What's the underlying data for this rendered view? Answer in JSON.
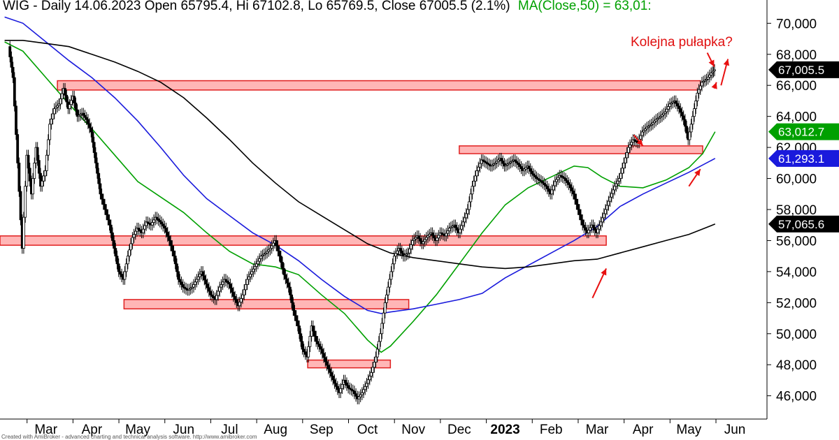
{
  "header": {
    "title_main": "WIG - Daily 14.06.2023 Open 65795.4, Hi 67102.8, Lo 65769.5, Close 67005.5 (2.1%)",
    "title_ma": "MA(Close,50) = 63,01:"
  },
  "annotation": {
    "text": "Kolejna pułapka?"
  },
  "footer": {
    "credit": "Created with AmiBroker - advanced charting and technical analysis software. http://www.amibroker.com"
  },
  "colors": {
    "price": "#000000",
    "ma50": "#00a000",
    "ma100": "#1a1adc",
    "ma200": "#000000",
    "zone_fill": "#ffb6b6",
    "zone_stroke": "#e02020",
    "arrow": "#e81010"
  },
  "chart_data": {
    "type": "candlestick",
    "ylim": [
      44500,
      71500
    ],
    "y_ticks": [
      46000,
      48000,
      50000,
      52000,
      54000,
      56000,
      58000,
      60000,
      62000,
      64000,
      66000,
      68000,
      70000
    ],
    "y_tick_labels": [
      "46,000",
      "48,000",
      "50,000",
      "52,000",
      "54,000",
      "56,000",
      "58,000",
      "60,000",
      "62,000",
      "64,000",
      "66,000",
      "68,000",
      "70,000"
    ],
    "x_months": [
      {
        "label": "Mar",
        "x": -8.5
      },
      {
        "label": "Apr",
        "x": -7.5
      },
      {
        "label": "May",
        "x": -6.5
      },
      {
        "label": "Jun",
        "x": -5.5
      },
      {
        "label": "Jul",
        "x": -4.5
      },
      {
        "label": "Aug",
        "x": -3.5
      },
      {
        "label": "Sep",
        "x": -2.5
      },
      {
        "label": "Oct",
        "x": -1.5
      },
      {
        "label": "Nov",
        "x": -0.5
      },
      {
        "label": "Dec",
        "x": 0.5
      },
      {
        "label": "2023",
        "x": 1.5,
        "bold": true
      },
      {
        "label": "Feb",
        "x": 2.5
      },
      {
        "label": "Mar",
        "x": 3.5
      },
      {
        "label": "Apr",
        "x": 4.5
      },
      {
        "label": "May",
        "x": 5.5
      },
      {
        "label": "Jun",
        "x": 6.5
      }
    ],
    "x_range": [
      -9.5,
      7.2
    ],
    "price_path": [
      [
        -9.3,
        68500
      ],
      [
        -9.2,
        66500
      ],
      [
        -9.1,
        61000
      ],
      [
        -9.0,
        55500
      ],
      [
        -8.9,
        61500
      ],
      [
        -8.8,
        59000
      ],
      [
        -8.7,
        62000
      ],
      [
        -8.6,
        59500
      ],
      [
        -8.5,
        60500
      ],
      [
        -8.4,
        63500
      ],
      [
        -8.3,
        64500
      ],
      [
        -8.2,
        64800
      ],
      [
        -8.1,
        65800
      ],
      [
        -8.0,
        64500
      ],
      [
        -7.9,
        65300
      ],
      [
        -7.8,
        64000
      ],
      [
        -7.7,
        64200
      ],
      [
        -7.6,
        63800
      ],
      [
        -7.5,
        63000
      ],
      [
        -7.4,
        61000
      ],
      [
        -7.3,
        59000
      ],
      [
        -7.2,
        58000
      ],
      [
        -7.1,
        57000
      ],
      [
        -7.0,
        55500
      ],
      [
        -6.9,
        54000
      ],
      [
        -6.8,
        53500
      ],
      [
        -6.7,
        55000
      ],
      [
        -6.6,
        56200
      ],
      [
        -6.5,
        56800
      ],
      [
        -6.4,
        56500
      ],
      [
        -6.3,
        57200
      ],
      [
        -6.2,
        57000
      ],
      [
        -6.1,
        57500
      ],
      [
        -6.0,
        57200
      ],
      [
        -5.9,
        56800
      ],
      [
        -5.8,
        56000
      ],
      [
        -5.7,
        55000
      ],
      [
        -5.6,
        53500
      ],
      [
        -5.5,
        53000
      ],
      [
        -5.4,
        52800
      ],
      [
        -5.3,
        53000
      ],
      [
        -5.2,
        53500
      ],
      [
        -5.1,
        54000
      ],
      [
        -5.0,
        53200
      ],
      [
        -4.9,
        52500
      ],
      [
        -4.8,
        52200
      ],
      [
        -4.7,
        53000
      ],
      [
        -4.6,
        53500
      ],
      [
        -4.5,
        53200
      ],
      [
        -4.4,
        52400
      ],
      [
        -4.3,
        51800
      ],
      [
        -4.2,
        52500
      ],
      [
        -4.1,
        53500
      ],
      [
        -4.0,
        54000
      ],
      [
        -3.9,
        54500
      ],
      [
        -3.8,
        55000
      ],
      [
        -3.7,
        55200
      ],
      [
        -3.6,
        55500
      ],
      [
        -3.5,
        56000
      ],
      [
        -3.4,
        55000
      ],
      [
        -3.3,
        53800
      ],
      [
        -3.2,
        53000
      ],
      [
        -3.1,
        51500
      ],
      [
        -3.0,
        50500
      ],
      [
        -2.9,
        49000
      ],
      [
        -2.8,
        48500
      ],
      [
        -2.7,
        50500
      ],
      [
        -2.6,
        49500
      ],
      [
        -2.5,
        49000
      ],
      [
        -2.4,
        48200
      ],
      [
        -2.3,
        47500
      ],
      [
        -2.2,
        46800
      ],
      [
        -2.1,
        46200
      ],
      [
        -2.0,
        47000
      ],
      [
        -1.9,
        46500
      ],
      [
        -1.8,
        46300
      ],
      [
        -1.7,
        45800
      ],
      [
        -1.6,
        46200
      ],
      [
        -1.5,
        46800
      ],
      [
        -1.4,
        47500
      ],
      [
        -1.3,
        48500
      ],
      [
        -1.2,
        50000
      ],
      [
        -1.1,
        52000
      ],
      [
        -1.0,
        53500
      ],
      [
        -0.9,
        55000
      ],
      [
        -0.8,
        55500
      ],
      [
        -0.7,
        55000
      ],
      [
        -0.6,
        55200
      ],
      [
        -0.5,
        56000
      ],
      [
        -0.4,
        56300
      ],
      [
        -0.3,
        55800
      ],
      [
        -0.2,
        56200
      ],
      [
        -0.1,
        56500
      ],
      [
        0.0,
        56000
      ],
      [
        0.1,
        56500
      ],
      [
        0.2,
        56300
      ],
      [
        0.3,
        56800
      ],
      [
        0.4,
        57000
      ],
      [
        0.5,
        56500
      ],
      [
        0.6,
        57200
      ],
      [
        0.7,
        58000
      ],
      [
        0.8,
        59500
      ],
      [
        0.9,
        60500
      ],
      [
        1.0,
        61200
      ],
      [
        1.1,
        61000
      ],
      [
        1.2,
        60800
      ],
      [
        1.3,
        61000
      ],
      [
        1.4,
        61300
      ],
      [
        1.5,
        60800
      ],
      [
        1.6,
        61000
      ],
      [
        1.7,
        61200
      ],
      [
        1.8,
        60900
      ],
      [
        1.9,
        60500
      ],
      [
        2.0,
        60800
      ],
      [
        2.1,
        60300
      ],
      [
        2.2,
        60000
      ],
      [
        2.3,
        59800
      ],
      [
        2.4,
        59500
      ],
      [
        2.5,
        59000
      ],
      [
        2.6,
        59800
      ],
      [
        2.7,
        60200
      ],
      [
        2.8,
        60000
      ],
      [
        2.9,
        59600
      ],
      [
        3.0,
        59000
      ],
      [
        3.1,
        58000
      ],
      [
        3.2,
        57000
      ],
      [
        3.3,
        56500
      ],
      [
        3.4,
        57000
      ],
      [
        3.5,
        56500
      ],
      [
        3.6,
        57200
      ],
      [
        3.7,
        58000
      ],
      [
        3.8,
        58800
      ],
      [
        3.9,
        59500
      ],
      [
        4.0,
        60000
      ],
      [
        4.1,
        61000
      ],
      [
        4.2,
        62000
      ],
      [
        4.3,
        62500
      ],
      [
        4.4,
        62300
      ],
      [
        4.5,
        63000
      ],
      [
        4.6,
        63300
      ],
      [
        4.7,
        63500
      ],
      [
        4.8,
        63800
      ],
      [
        4.9,
        64000
      ],
      [
        5.0,
        64300
      ],
      [
        5.1,
        64800
      ],
      [
        5.2,
        65000
      ],
      [
        5.3,
        64500
      ],
      [
        5.4,
        63800
      ],
      [
        5.5,
        62500
      ],
      [
        5.6,
        64000
      ],
      [
        5.7,
        65500
      ],
      [
        5.8,
        66200
      ],
      [
        5.9,
        66400
      ],
      [
        6.0,
        66800
      ],
      [
        6.07,
        67005.5
      ]
    ],
    "series": [
      {
        "name": "MA(Close,50)",
        "label": "63,012.7",
        "path": [
          [
            -9.4,
            68800
          ],
          [
            -9.0,
            68200
          ],
          [
            -8.5,
            66500
          ],
          [
            -8.0,
            64800
          ],
          [
            -7.5,
            63200
          ],
          [
            -7.0,
            61500
          ],
          [
            -6.5,
            59800
          ],
          [
            -6.0,
            58800
          ],
          [
            -5.5,
            57800
          ],
          [
            -5.0,
            56500
          ],
          [
            -4.5,
            55300
          ],
          [
            -4.0,
            54500
          ],
          [
            -3.5,
            54300
          ],
          [
            -3.0,
            53800
          ],
          [
            -2.5,
            52500
          ],
          [
            -2.0,
            51300
          ],
          [
            -1.5,
            49600
          ],
          [
            -1.2,
            48800
          ],
          [
            -1.0,
            49200
          ],
          [
            -0.5,
            50800
          ],
          [
            0.0,
            52500
          ],
          [
            0.5,
            54500
          ],
          [
            1.0,
            56500
          ],
          [
            1.5,
            58300
          ],
          [
            2.0,
            59400
          ],
          [
            2.5,
            60100
          ],
          [
            3.0,
            60800
          ],
          [
            3.3,
            60700
          ],
          [
            3.6,
            60100
          ],
          [
            4.0,
            59500
          ],
          [
            4.5,
            59400
          ],
          [
            5.0,
            59900
          ],
          [
            5.5,
            60700
          ],
          [
            5.8,
            61600
          ],
          [
            6.07,
            63012.7
          ]
        ]
      },
      {
        "name": "MA(Close,100)",
        "label": "61,293.1",
        "path": [
          [
            -9.4,
            70400
          ],
          [
            -9.0,
            70000
          ],
          [
            -8.5,
            68800
          ],
          [
            -8.0,
            67600
          ],
          [
            -7.5,
            66500
          ],
          [
            -7.0,
            65200
          ],
          [
            -6.5,
            63700
          ],
          [
            -6.0,
            62000
          ],
          [
            -5.5,
            60200
          ],
          [
            -5.0,
            58700
          ],
          [
            -4.5,
            57600
          ],
          [
            -4.0,
            56500
          ],
          [
            -3.5,
            55700
          ],
          [
            -3.0,
            54700
          ],
          [
            -2.5,
            53500
          ],
          [
            -2.0,
            52400
          ],
          [
            -1.5,
            51500
          ],
          [
            -1.2,
            51300
          ],
          [
            -1.0,
            51400
          ],
          [
            -0.5,
            51600
          ],
          [
            0.0,
            51900
          ],
          [
            0.5,
            52200
          ],
          [
            1.0,
            52600
          ],
          [
            1.5,
            53600
          ],
          [
            2.0,
            54400
          ],
          [
            2.5,
            55200
          ],
          [
            3.0,
            56000
          ],
          [
            3.5,
            56900
          ],
          [
            4.0,
            58200
          ],
          [
            4.5,
            59000
          ],
          [
            5.0,
            59700
          ],
          [
            5.5,
            60400
          ],
          [
            6.07,
            61293.1
          ]
        ]
      },
      {
        "name": "MA(Close,200)",
        "label": "57,065.6",
        "path": [
          [
            -9.4,
            68900
          ],
          [
            -9.0,
            68900
          ],
          [
            -8.5,
            68700
          ],
          [
            -8.0,
            68500
          ],
          [
            -7.5,
            68000
          ],
          [
            -7.0,
            67500
          ],
          [
            -6.5,
            66900
          ],
          [
            -6.0,
            66200
          ],
          [
            -5.5,
            65200
          ],
          [
            -5.0,
            63900
          ],
          [
            -4.5,
            62500
          ],
          [
            -4.0,
            61000
          ],
          [
            -3.5,
            59700
          ],
          [
            -3.0,
            58500
          ],
          [
            -2.5,
            57600
          ],
          [
            -2.0,
            56700
          ],
          [
            -1.5,
            55800
          ],
          [
            -1.0,
            55200
          ],
          [
            -0.5,
            54900
          ],
          [
            0.0,
            54700
          ],
          [
            0.5,
            54500
          ],
          [
            1.0,
            54300
          ],
          [
            1.5,
            54200
          ],
          [
            2.0,
            54300
          ],
          [
            2.5,
            54500
          ],
          [
            3.0,
            54700
          ],
          [
            3.5,
            54800
          ],
          [
            4.0,
            55200
          ],
          [
            4.5,
            55600
          ],
          [
            5.0,
            56000
          ],
          [
            5.5,
            56400
          ],
          [
            6.07,
            57065.6
          ]
        ]
      }
    ],
    "last_price_label": "67,005.5",
    "zones": [
      {
        "x0": -8.25,
        "x1": 5.75,
        "y0": 65700,
        "y1": 66300
      },
      {
        "x0": 0.5,
        "x1": 5.8,
        "y0": 61600,
        "y1": 62100
      },
      {
        "x0": -9.5,
        "x1": 3.7,
        "y0": 55700,
        "y1": 56300
      },
      {
        "x0": -6.8,
        "x1": -0.6,
        "y0": 51600,
        "y1": 52200
      },
      {
        "x0": -2.8,
        "x1": -1.0,
        "y0": 47800,
        "y1": 48300
      }
    ],
    "arrows": [
      {
        "x0": 3.4,
        "y0": 52300,
        "x1": 3.7,
        "y1": 54200
      },
      {
        "x0": 5.5,
        "y0": 59500,
        "x1": 5.75,
        "y1": 60600
      },
      {
        "x0": 4.3,
        "y0": 62800,
        "x1": 4.5,
        "y1": 62100
      },
      {
        "x0": 5.9,
        "y0": 68100,
        "x1": 6.05,
        "y1": 67200
      },
      {
        "x0": 6.05,
        "y0": 65800,
        "x1": 6.1,
        "y1": 66200
      },
      {
        "x0": 6.2,
        "y0": 66000,
        "x1": 6.35,
        "y1": 67700
      }
    ]
  }
}
